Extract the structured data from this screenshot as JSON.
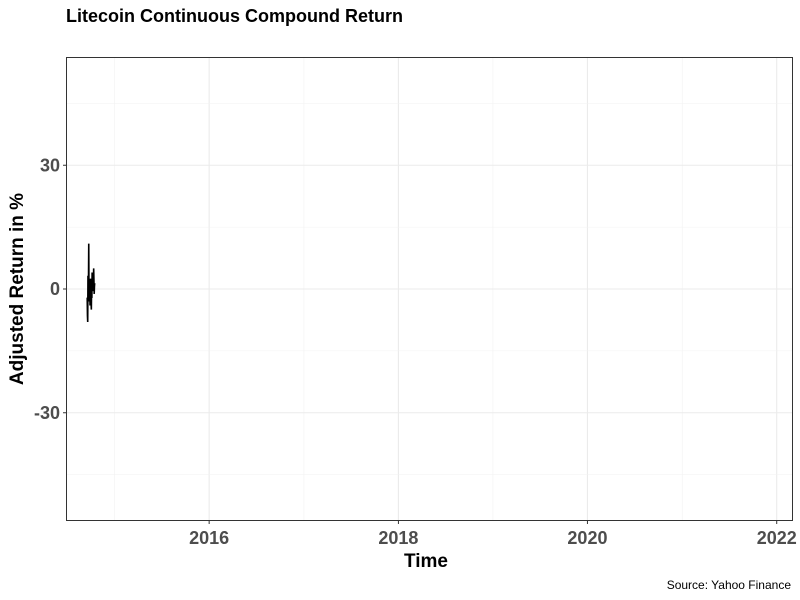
{
  "chart_data": {
    "type": "line",
    "title": "Litecoin Continuous Compound Return",
    "xlabel": "Time",
    "ylabel": "Adjusted Return in %",
    "caption": "Source: Yahoo Finance",
    "x_ticks": [
      "2016",
      "2018",
      "2020",
      "2022"
    ],
    "y_ticks": [
      "-30",
      "0",
      "30"
    ],
    "xlim": [
      "2014-07-01",
      "2022-03-01"
    ],
    "ylim": [
      -56,
      56
    ],
    "grid": true,
    "series": [
      {
        "color": "#000000",
        "x": [
          "2014-09-17",
          "2014-09-18",
          "2014-09-19",
          "2014-09-20",
          "2014-09-21",
          "2014-09-22",
          "2014-09-23",
          "2014-09-24",
          "2014-09-25",
          "2014-09-26",
          "2014-09-27",
          "2014-09-28",
          "2014-09-29",
          "2014-09-30",
          "2014-10-01",
          "2014-10-02",
          "2014-10-03",
          "2014-10-04",
          "2014-10-05",
          "2014-10-06",
          "2014-10-07",
          "2014-10-08",
          "2014-10-09",
          "2014-10-10",
          "2014-10-11",
          "2014-10-12",
          "2014-10-13",
          "2014-10-14",
          "2014-10-15",
          "2014-10-16"
        ],
        "values": [
          -2.1,
          -6.5,
          -8.0,
          3.2,
          -1.5,
          2.0,
          11.0,
          -3.0,
          -2.5,
          0.5,
          -0.8,
          -4.0,
          1.2,
          2.5,
          -1.8,
          -3.5,
          -5.0,
          0.2,
          -2.2,
          4.0,
          1.5,
          3.0,
          -0.5,
          1.0,
          0.8,
          5.0,
          2.2,
          -1.2,
          0.6,
          1.4
        ]
      }
    ]
  }
}
